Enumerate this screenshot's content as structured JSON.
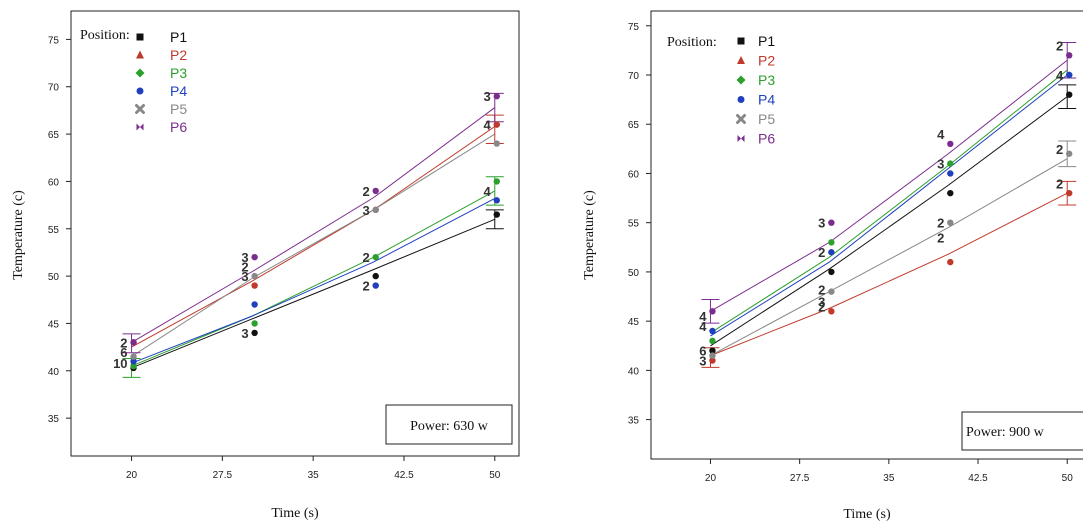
{
  "chart_data": [
    {
      "type": "line",
      "xlabel": "Time (s)",
      "ylabel": "Temperature (c)",
      "x_ticks": [
        "20",
        "27.5",
        "35",
        "42.5",
        "50"
      ],
      "y_ticks": [
        "35",
        "40",
        "45",
        "50",
        "55",
        "60",
        "65",
        "70",
        "75"
      ],
      "xlim": [
        15,
        52
      ],
      "ylim": [
        31,
        78
      ],
      "legend_title": "Position:",
      "legend_position": "top-left",
      "annotation": "Power: 630 w",
      "x": [
        20,
        30,
        40,
        50
      ],
      "series": [
        {
          "name": "P1",
          "color": "#111111",
          "marker": "square",
          "fit": [
            40.3,
            45.5,
            50.7,
            56.0
          ],
          "points": [
            [
              20,
              40.3
            ],
            [
              30,
              44
            ],
            [
              40,
              50
            ],
            [
              50,
              56.5
            ]
          ]
        },
        {
          "name": "P2",
          "color": "#c0392b",
          "marker": "triangle",
          "fit": [
            42.5,
            49.5,
            57.0,
            65.8
          ],
          "points": [
            [
              20,
              43
            ],
            [
              30,
              49
            ],
            [
              40,
              57
            ],
            [
              50,
              66
            ]
          ]
        },
        {
          "name": "P3",
          "color": "#2ca02c",
          "marker": "diamond",
          "fit": [
            40.5,
            45.8,
            52.0,
            59.0
          ],
          "points": [
            [
              20,
              40.5
            ],
            [
              30,
              45
            ],
            [
              40,
              52
            ],
            [
              50,
              60
            ]
          ]
        },
        {
          "name": "P4",
          "color": "#1f3fbf",
          "marker": "circle",
          "fit": [
            40.8,
            45.8,
            51.5,
            58.2
          ],
          "points": [
            [
              20,
              41
            ],
            [
              30,
              47
            ],
            [
              40,
              49
            ],
            [
              50,
              58
            ]
          ]
        },
        {
          "name": "P5",
          "color": "#888888",
          "marker": "x",
          "fit": [
            41.5,
            49.8,
            57.0,
            65.0
          ],
          "points": [
            [
              20,
              41.5
            ],
            [
              30,
              50
            ],
            [
              40,
              57
            ],
            [
              50,
              64
            ]
          ]
        },
        {
          "name": "P6",
          "color": "#7b2d8e",
          "marker": "bowtie",
          "fit": [
            43.0,
            50.5,
            58.3,
            67.8
          ],
          "points": [
            [
              20,
              43
            ],
            [
              30,
              52
            ],
            [
              40,
              59
            ],
            [
              50,
              69
            ]
          ]
        }
      ],
      "errorbars": [
        {
          "x": 20,
          "center": 40.3,
          "half": 1.0,
          "color": "#2ca02c"
        },
        {
          "x": 20,
          "center": 42.9,
          "half": 1.0,
          "color": "#7b2d8e"
        },
        {
          "x": 50,
          "center": 56.0,
          "half": 1.0,
          "color": "#111111"
        },
        {
          "x": 50,
          "center": 59.0,
          "half": 1.5,
          "color": "#2ca02c"
        },
        {
          "x": 50,
          "center": 65.5,
          "half": 1.5,
          "color": "#c0392b"
        },
        {
          "x": 50,
          "center": 67.8,
          "half": 1.5,
          "color": "#7b2d8e"
        }
      ],
      "count_labels": [
        {
          "text": "2",
          "x": 20,
          "y": 43
        },
        {
          "text": "6",
          "x": 20,
          "y": 42
        },
        {
          "text": "10",
          "x": 20,
          "y": 40.8
        },
        {
          "text": "3",
          "x": 30,
          "y": 52
        },
        {
          "text": "2",
          "x": 30,
          "y": 51
        },
        {
          "text": "3",
          "x": 30,
          "y": 50
        },
        {
          "text": "3",
          "x": 30,
          "y": 44
        },
        {
          "text": "2",
          "x": 40,
          "y": 59
        },
        {
          "text": "3",
          "x": 40,
          "y": 57
        },
        {
          "text": "2",
          "x": 40,
          "y": 52
        },
        {
          "text": "2",
          "x": 40,
          "y": 49
        },
        {
          "text": "3",
          "x": 50,
          "y": 69
        },
        {
          "text": "4",
          "x": 50,
          "y": 66
        },
        {
          "text": "4",
          "x": 50,
          "y": 59
        }
      ]
    },
    {
      "type": "line",
      "xlabel": "Time (s)",
      "ylabel": "Temperature (c)",
      "x_ticks": [
        "20",
        "27.5",
        "35",
        "42.5",
        "50"
      ],
      "y_ticks": [
        "35",
        "40",
        "45",
        "50",
        "55",
        "60",
        "65",
        "70",
        "75"
      ],
      "xlim": [
        15,
        52
      ],
      "ylim": [
        31,
        76.5
      ],
      "legend_title": "Position:",
      "legend_position": "top-left",
      "annotation": "Power: 900 w",
      "x": [
        20,
        30,
        40,
        50
      ],
      "series": [
        {
          "name": "P1",
          "color": "#111111",
          "marker": "square",
          "fit": [
            42.5,
            50.3,
            58.8,
            67.8
          ],
          "points": [
            [
              20,
              42
            ],
            [
              30,
              50
            ],
            [
              40,
              58
            ],
            [
              50,
              68
            ]
          ]
        },
        {
          "name": "P2",
          "color": "#c0392b",
          "marker": "triangle",
          "fit": [
            41.5,
            46.3,
            51.8,
            58.0
          ],
          "points": [
            [
              20,
              41
            ],
            [
              30,
              46
            ],
            [
              40,
              51
            ],
            [
              50,
              58
            ]
          ]
        },
        {
          "name": "P3",
          "color": "#2ca02c",
          "marker": "diamond",
          "fit": [
            43.8,
            51.5,
            60.8,
            70.5
          ],
          "points": [
            [
              20,
              43
            ],
            [
              30,
              53
            ],
            [
              40,
              61
            ],
            [
              50,
              70
            ]
          ]
        },
        {
          "name": "P4",
          "color": "#1f3fbf",
          "marker": "circle",
          "fit": [
            43.5,
            51.0,
            60.5,
            70.0
          ],
          "points": [
            [
              20,
              44
            ],
            [
              30,
              52
            ],
            [
              40,
              60
            ],
            [
              50,
              70
            ]
          ]
        },
        {
          "name": "P5",
          "color": "#888888",
          "marker": "x",
          "fit": [
            41.5,
            48.0,
            54.5,
            61.5
          ],
          "points": [
            [
              20,
              41.5
            ],
            [
              30,
              48
            ],
            [
              40,
              55
            ],
            [
              50,
              62
            ]
          ]
        },
        {
          "name": "P6",
          "color": "#7b2d8e",
          "marker": "bowtie",
          "fit": [
            46.0,
            53.0,
            62.0,
            71.5
          ],
          "points": [
            [
              20,
              46
            ],
            [
              30,
              55
            ],
            [
              40,
              63
            ],
            [
              50,
              72
            ]
          ]
        }
      ],
      "errorbars": [
        {
          "x": 20,
          "center": 46.0,
          "half": 1.2,
          "color": "#7b2d8e"
        },
        {
          "x": 20,
          "center": 41.3,
          "half": 1.0,
          "color": "#c0392b"
        },
        {
          "x": 50,
          "center": 58.0,
          "half": 1.2,
          "color": "#c0392b"
        },
        {
          "x": 50,
          "center": 62.0,
          "half": 1.3,
          "color": "#888888"
        },
        {
          "x": 50,
          "center": 67.8,
          "half": 1.2,
          "color": "#111111"
        },
        {
          "x": 50,
          "center": 71.5,
          "half": 1.8,
          "color": "#7b2d8e"
        }
      ],
      "count_labels": [
        {
          "text": "4",
          "x": 20,
          "y": 45.5
        },
        {
          "text": "4",
          "x": 20,
          "y": 44.5
        },
        {
          "text": "6",
          "x": 20,
          "y": 42
        },
        {
          "text": "3",
          "x": 20,
          "y": 41
        },
        {
          "text": "3",
          "x": 30,
          "y": 55
        },
        {
          "text": "2",
          "x": 30,
          "y": 52
        },
        {
          "text": "2",
          "x": 30,
          "y": 48.2
        },
        {
          "text": "3",
          "x": 30,
          "y": 47
        },
        {
          "text": "2",
          "x": 30,
          "y": 46.5
        },
        {
          "text": "4",
          "x": 40,
          "y": 64
        },
        {
          "text": "3",
          "x": 40,
          "y": 61
        },
        {
          "text": "2",
          "x": 40,
          "y": 55
        },
        {
          "text": "2",
          "x": 40,
          "y": 53.5
        },
        {
          "text": "2",
          "x": 50,
          "y": 73
        },
        {
          "text": "4",
          "x": 50,
          "y": 70
        },
        {
          "text": "2",
          "x": 50,
          "y": 62.5
        },
        {
          "text": "2",
          "x": 50,
          "y": 59
        }
      ]
    }
  ]
}
